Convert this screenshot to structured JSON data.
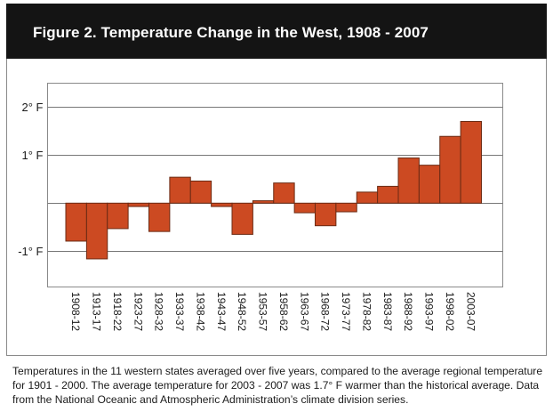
{
  "header": {
    "title": "Figure 2. Temperature Change in the West, 1908 - 2007"
  },
  "caption": "Temperatures in the 11 western states averaged over five years, compared to the average regional temperature for 1901 - 2000. The average temperature for 2003 - 2007 was 1.7° F warmer than the historical average. Data from the National Oceanic and Atmospheric Administration’s climate division series.",
  "colors": {
    "bar_fill": "#cc4a22",
    "bar_stroke": "#6b2b14",
    "header_bg": "#141414",
    "gridline": "#777777"
  },
  "chart_data": {
    "type": "bar",
    "title": "Figure 2. Temperature Change in the West, 1908 - 2007",
    "xlabel": "",
    "ylabel": "",
    "units": "°F (anomaly vs. 1901-2000 average)",
    "ylim": [
      -1.75,
      2.25
    ],
    "yticks": [
      {
        "value": 2,
        "label": "2° F"
      },
      {
        "value": 1,
        "label": "1° F"
      },
      {
        "value": 0,
        "label": ""
      },
      {
        "value": -1,
        "label": "-1° F"
      }
    ],
    "grid": true,
    "legend": "none",
    "categories": [
      "1908-12",
      "1913-17",
      "1918-22",
      "1923-27",
      "1928-32",
      "1933-37",
      "1938-42",
      "1943-47",
      "1948-52",
      "1953-57",
      "1958-62",
      "1963-67",
      "1968-72",
      "1973-77",
      "1978-82",
      "1983-87",
      "1988-92",
      "1993-97",
      "1998-02",
      "2003-07"
    ],
    "values": [
      -0.79,
      -1.16,
      -0.53,
      -0.07,
      -0.59,
      0.54,
      0.46,
      -0.07,
      -0.65,
      0.05,
      0.42,
      -0.2,
      -0.47,
      -0.18,
      0.23,
      0.35,
      0.94,
      0.79,
      1.39,
      1.7
    ]
  }
}
